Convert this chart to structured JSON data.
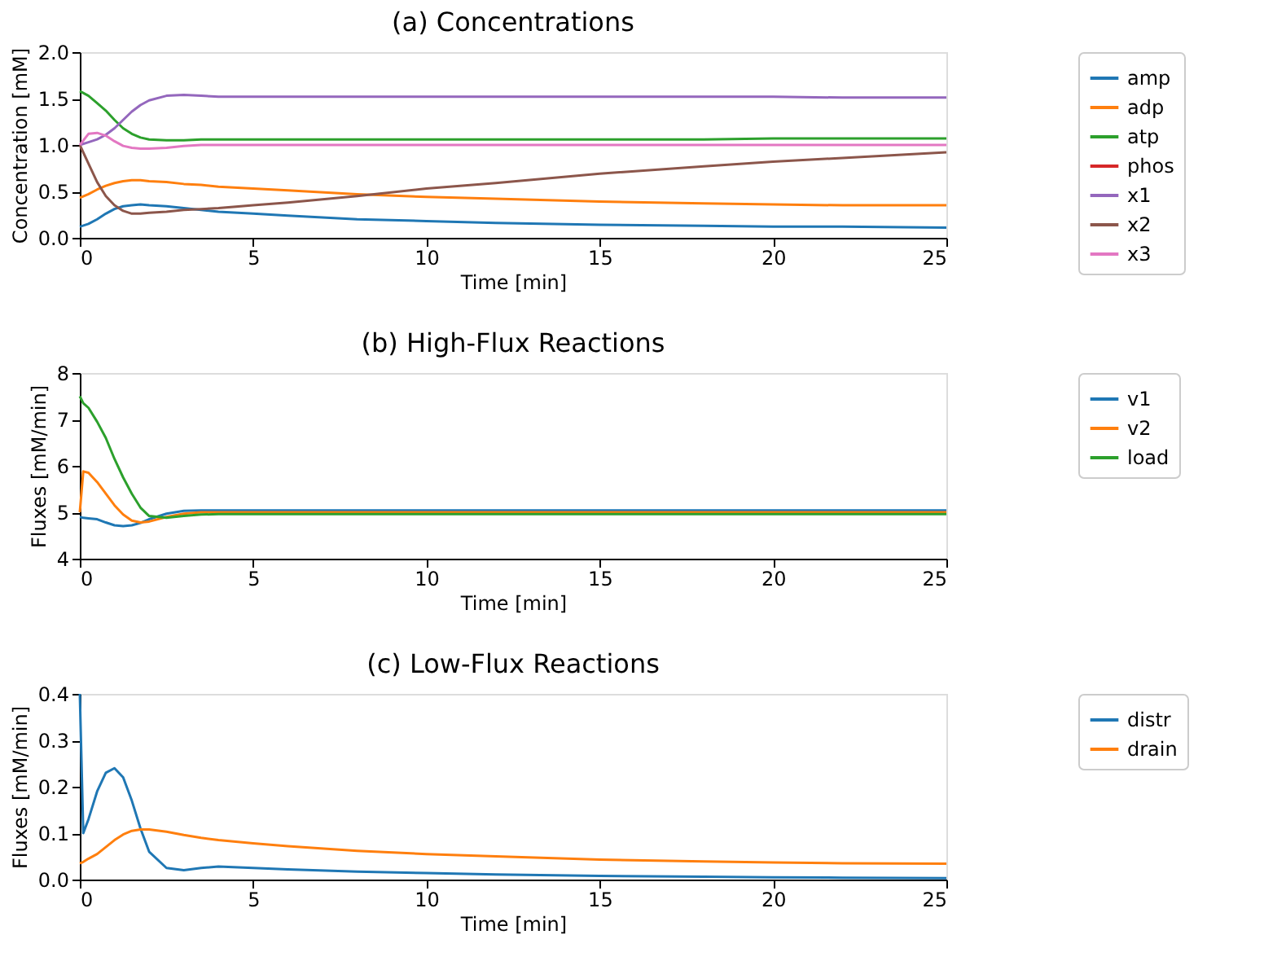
{
  "chart_data": [
    {
      "type": "line",
      "title": "(a) Concentrations",
      "xlabel": "Time [min]",
      "ylabel": "Concentration [mM]",
      "legend": "right",
      "grid": false,
      "x": [
        0,
        0.25,
        0.5,
        0.75,
        1,
        1.25,
        1.5,
        1.75,
        2,
        2.5,
        3,
        3.5,
        4,
        5,
        6,
        8,
        10,
        12,
        15,
        18,
        20,
        22,
        25
      ],
      "xlim": [
        0,
        25
      ],
      "xticks": [
        0,
        5,
        10,
        15,
        20,
        25
      ],
      "ylim": [
        0,
        2
      ],
      "yticks": [
        {
          "value": 0,
          "label": "0.0"
        },
        0.5,
        {
          "value": 1,
          "label": "1.0"
        },
        1.5,
        {
          "value": 2,
          "label": "2.0"
        }
      ],
      "series": [
        {
          "name": "amp",
          "color": "#1f77b4",
          "values": [
            0.12,
            0.15,
            0.2,
            0.26,
            0.31,
            0.34,
            0.35,
            0.36,
            0.35,
            0.34,
            0.32,
            0.3,
            0.28,
            0.26,
            0.24,
            0.2,
            0.18,
            0.16,
            0.14,
            0.13,
            0.12,
            0.12,
            0.11
          ]
        },
        {
          "name": "adp",
          "color": "#ff7f0e",
          "values": [
            0.43,
            0.47,
            0.52,
            0.56,
            0.59,
            0.61,
            0.62,
            0.62,
            0.61,
            0.6,
            0.58,
            0.57,
            0.55,
            0.53,
            0.51,
            0.47,
            0.44,
            0.42,
            0.39,
            0.37,
            0.36,
            0.35,
            0.35
          ]
        },
        {
          "name": "atp",
          "color": "#2ca02c",
          "values": [
            1.58,
            1.53,
            1.45,
            1.37,
            1.27,
            1.18,
            1.12,
            1.08,
            1.06,
            1.05,
            1.05,
            1.06,
            1.06,
            1.06,
            1.06,
            1.06,
            1.06,
            1.06,
            1.06,
            1.06,
            1.07,
            1.07,
            1.07
          ]
        },
        {
          "name": "phos",
          "color": "#d62728",
          "values": [
            null,
            null,
            null,
            null,
            null,
            null,
            null,
            null,
            null,
            null,
            null,
            null,
            null,
            null,
            null,
            null,
            null,
            null,
            null,
            null,
            null,
            null,
            null
          ]
        },
        {
          "name": "x1",
          "color": "#9467bd",
          "values": [
            1.0,
            1.03,
            1.06,
            1.11,
            1.18,
            1.27,
            1.36,
            1.43,
            1.48,
            1.53,
            1.54,
            1.53,
            1.52,
            1.52,
            1.52,
            1.52,
            1.52,
            1.52,
            1.52,
            1.52,
            1.52,
            1.51,
            1.51
          ]
        },
        {
          "name": "x2",
          "color": "#8c564b",
          "values": [
            1.0,
            0.8,
            0.6,
            0.45,
            0.35,
            0.29,
            0.26,
            0.26,
            0.27,
            0.28,
            0.3,
            0.31,
            0.32,
            0.35,
            0.38,
            0.45,
            0.53,
            0.59,
            0.69,
            0.77,
            0.82,
            0.86,
            0.92
          ]
        },
        {
          "name": "x3",
          "color": "#e377c2",
          "values": [
            1.0,
            1.12,
            1.13,
            1.1,
            1.04,
            0.99,
            0.97,
            0.96,
            0.96,
            0.97,
            0.99,
            1.0,
            1.0,
            1.0,
            1.0,
            1.0,
            1.0,
            1.0,
            1.0,
            1.0,
            1.0,
            1.0,
            1.0
          ]
        }
      ]
    },
    {
      "type": "line",
      "title": "(b) High-Flux Reactions",
      "xlabel": "Time [min]",
      "ylabel": "Fluxes [mM/min]",
      "legend": "right",
      "grid": false,
      "x": [
        0,
        0.1,
        0.25,
        0.5,
        0.75,
        1,
        1.25,
        1.5,
        1.75,
        2,
        2.5,
        3,
        3.5,
        4,
        5,
        6,
        8,
        10,
        12,
        15,
        18,
        20,
        22,
        25
      ],
      "xlim": [
        0,
        25
      ],
      "xticks": [
        0,
        5,
        10,
        15,
        20,
        25
      ],
      "ylim": [
        4,
        8
      ],
      "yticks": [
        4,
        5,
        6,
        7,
        8
      ],
      "series": [
        {
          "name": "v1",
          "color": "#1f77b4",
          "values": [
            4.9,
            4.88,
            4.87,
            4.85,
            4.78,
            4.72,
            4.7,
            4.72,
            4.77,
            4.85,
            4.97,
            5.03,
            5.04,
            5.04,
            5.04,
            5.04,
            5.04,
            5.04,
            5.04,
            5.04,
            5.04,
            5.04,
            5.04,
            5.04
          ]
        },
        {
          "name": "v2",
          "color": "#ff7f0e",
          "values": [
            5.0,
            5.88,
            5.85,
            5.65,
            5.4,
            5.15,
            4.95,
            4.82,
            4.78,
            4.8,
            4.9,
            4.97,
            5.0,
            5.0,
            5.0,
            5.0,
            5.0,
            5.0,
            5.0,
            5.0,
            5.0,
            5.0,
            5.0,
            5.0
          ]
        },
        {
          "name": "load",
          "color": "#2ca02c",
          "values": [
            7.5,
            7.35,
            7.25,
            6.95,
            6.6,
            6.15,
            5.75,
            5.4,
            5.1,
            4.92,
            4.88,
            4.92,
            4.95,
            4.96,
            4.96,
            4.96,
            4.96,
            4.96,
            4.96,
            4.96,
            4.96,
            4.96,
            4.96,
            4.96
          ]
        }
      ]
    },
    {
      "type": "line",
      "title": "(c) Low-Flux Reactions",
      "xlabel": "Time [min]",
      "ylabel": "Fluxes [mM/min]",
      "legend": "right",
      "grid": false,
      "x": [
        0,
        0.1,
        0.25,
        0.5,
        0.75,
        1,
        1.25,
        1.5,
        1.75,
        2,
        2.5,
        3,
        3.5,
        4,
        5,
        6,
        8,
        10,
        12,
        15,
        18,
        20,
        22,
        25
      ],
      "xlim": [
        0,
        25
      ],
      "xticks": [
        0,
        5,
        10,
        15,
        20,
        25
      ],
      "ylim": [
        0,
        0.4
      ],
      "yticks": [
        {
          "value": 0,
          "label": "0.0"
        },
        0.1,
        0.2,
        0.3,
        0.4
      ],
      "series": [
        {
          "name": "distr",
          "color": "#1f77b4",
          "values": [
            0.4,
            0.1,
            0.13,
            0.19,
            0.23,
            0.24,
            0.22,
            0.17,
            0.11,
            0.06,
            0.025,
            0.02,
            0.025,
            0.028,
            0.025,
            0.022,
            0.017,
            0.014,
            0.011,
            0.008,
            0.006,
            0.005,
            0.004,
            0.003
          ]
        },
        {
          "name": "drain",
          "color": "#ff7f0e",
          "values": [
            0.035,
            0.038,
            0.045,
            0.055,
            0.07,
            0.085,
            0.097,
            0.105,
            0.108,
            0.108,
            0.103,
            0.096,
            0.09,
            0.085,
            0.078,
            0.072,
            0.062,
            0.055,
            0.05,
            0.043,
            0.039,
            0.037,
            0.035,
            0.034
          ]
        }
      ]
    }
  ]
}
